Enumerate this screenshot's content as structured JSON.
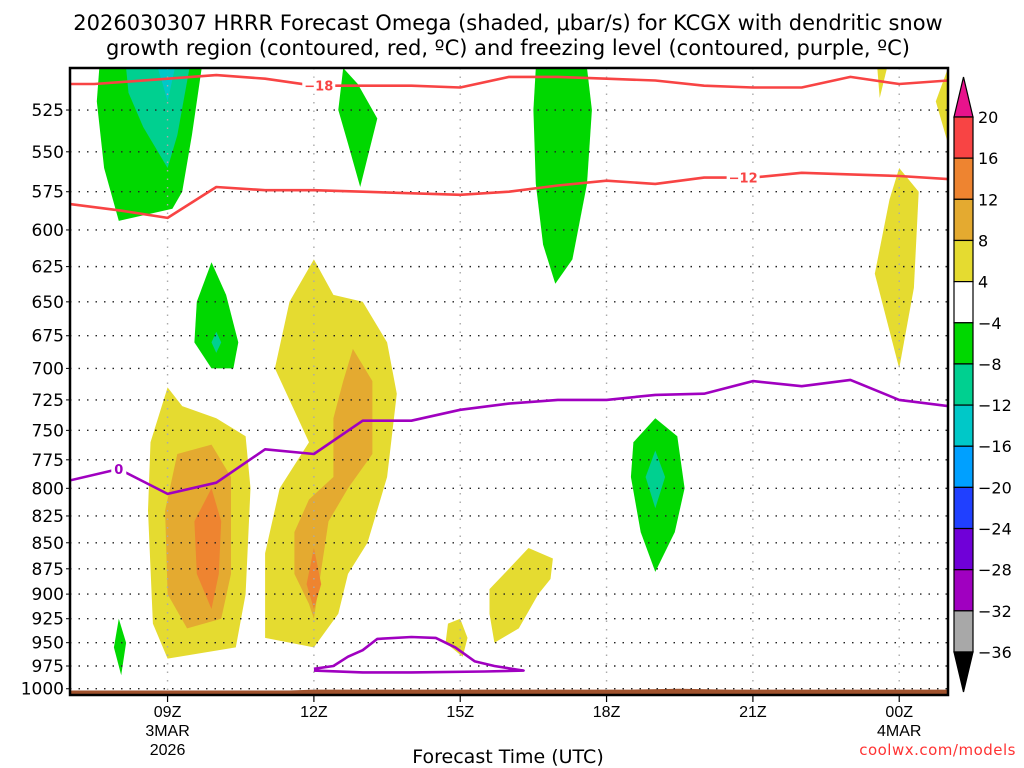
{
  "chart_data": {
    "type": "heatmap",
    "title_lines": [
      "2026030307 HRRR Forecast Omega (shaded, μbar/s) for KCGX with dendritic snow",
      "growth region (contoured, red, ºC) and freezing level (contoured, purple, ºC)"
    ],
    "xlabel": "Forecast Time (UTC)",
    "ylabel": "",
    "credit": "coolwx.com/models",
    "x_range_hours": [
      -2,
      16
    ],
    "x_ticks": [
      {
        "hour": 0,
        "lines": [
          "09Z",
          "3MAR",
          "2026"
        ]
      },
      {
        "hour": 3,
        "lines": [
          "12Z"
        ]
      },
      {
        "hour": 6,
        "lines": [
          "15Z"
        ]
      },
      {
        "hour": 9,
        "lines": [
          "18Z"
        ]
      },
      {
        "hour": 12,
        "lines": [
          "21Z"
        ]
      },
      {
        "hour": 15,
        "lines": [
          "00Z",
          "4MAR"
        ]
      }
    ],
    "y_range_hpa": [
      1007,
      501
    ],
    "y_ticks": [
      525,
      550,
      575,
      600,
      625,
      650,
      675,
      700,
      725,
      750,
      775,
      800,
      825,
      850,
      875,
      900,
      925,
      950,
      975,
      1000
    ],
    "grid": true,
    "colorbar": {
      "levels": [
        "20",
        "16",
        "12",
        "8",
        "4",
        "−4",
        "−8",
        "−12",
        "−16",
        "−20",
        "−24",
        "−28",
        "−32",
        "−36"
      ],
      "top_arrow_color": "#e8138c",
      "bottom_arrow_color": "#000000",
      "bins": [
        {
          "range": "16 to 20",
          "color": "#f84444"
        },
        {
          "range": "12 to 16",
          "color": "#ee8430"
        },
        {
          "range": "8 to 12",
          "color": "#e4aa30"
        },
        {
          "range": "4 to 8",
          "color": "#e5db30"
        },
        {
          "range": "-4 to 4",
          "color": "#ffffff"
        },
        {
          "range": "-8 to -4",
          "color": "#00d800"
        },
        {
          "range": "-12 to -8",
          "color": "#00d090"
        },
        {
          "range": "-16 to -12",
          "color": "#00c8c8"
        },
        {
          "range": "-20 to -16",
          "color": "#00a0ff"
        },
        {
          "range": "-24 to -20",
          "color": "#2040ff"
        },
        {
          "range": "-28 to -24",
          "color": "#7000d8"
        },
        {
          "range": "-32 to -28",
          "color": "#a000c0"
        },
        {
          "range": "-36 to -32",
          "color": "#a8a8a8"
        }
      ]
    },
    "shaded_regions": [
      {
        "name": "ascent-09z-upper",
        "bin_color": "#00d800",
        "points": [
          [
            -1.4,
            501
          ],
          [
            0.7,
            501
          ],
          [
            0.5,
            540
          ],
          [
            0.3,
            575
          ],
          [
            0.1,
            586
          ],
          [
            -1.0,
            594
          ],
          [
            -1.3,
            560
          ],
          [
            -1.45,
            520
          ]
        ]
      },
      {
        "name": "ascent-09z-upper-core",
        "bin_color": "#00d090",
        "points": [
          [
            -0.85,
            501
          ],
          [
            0.45,
            501
          ],
          [
            0.2,
            540
          ],
          [
            0.0,
            560
          ],
          [
            -0.5,
            535
          ],
          [
            -0.8,
            515
          ]
        ]
      },
      {
        "name": "ascent-09z-upper-max",
        "bin_color": "#00c8c8",
        "points": [
          [
            -0.2,
            501
          ],
          [
            0.15,
            501
          ],
          [
            0.0,
            520
          ],
          [
            -0.1,
            510
          ]
        ]
      },
      {
        "name": "ascent-10z",
        "bin_color": "#00d800",
        "points": [
          [
            0.9,
            622
          ],
          [
            1.2,
            645
          ],
          [
            1.45,
            680
          ],
          [
            1.35,
            700
          ],
          [
            0.9,
            700
          ],
          [
            0.55,
            680
          ],
          [
            0.6,
            650
          ]
        ]
      },
      {
        "name": "ascent-10z-core",
        "bin_color": "#00d090",
        "points": [
          [
            1.0,
            672
          ],
          [
            1.1,
            680
          ],
          [
            1.0,
            688
          ],
          [
            0.9,
            680
          ]
        ]
      },
      {
        "name": "ascent-13z",
        "bin_color": "#00d800",
        "points": [
          [
            3.6,
            501
          ],
          [
            3.9,
            510
          ],
          [
            4.3,
            530
          ],
          [
            3.95,
            572
          ],
          [
            3.7,
            545
          ],
          [
            3.5,
            525
          ]
        ]
      },
      {
        "name": "ascent-17z",
        "bin_color": "#00d800",
        "points": [
          [
            7.55,
            501
          ],
          [
            8.6,
            501
          ],
          [
            8.7,
            525
          ],
          [
            8.6,
            570
          ],
          [
            8.3,
            620
          ],
          [
            7.95,
            637
          ],
          [
            7.7,
            610
          ],
          [
            7.55,
            570
          ],
          [
            7.5,
            525
          ]
        ]
      },
      {
        "name": "ascent-19z",
        "bin_color": "#00d800",
        "points": [
          [
            10.0,
            740
          ],
          [
            10.45,
            755
          ],
          [
            10.6,
            800
          ],
          [
            10.4,
            840
          ],
          [
            10.0,
            878
          ],
          [
            9.7,
            840
          ],
          [
            9.5,
            790
          ],
          [
            9.55,
            760
          ]
        ]
      },
      {
        "name": "ascent-19z-core",
        "bin_color": "#00d090",
        "points": [
          [
            10.0,
            767
          ],
          [
            10.2,
            790
          ],
          [
            10.0,
            818
          ],
          [
            9.8,
            790
          ]
        ]
      },
      {
        "name": "ascent-08z-low",
        "bin_color": "#00d800",
        "points": [
          [
            -1.0,
            925
          ],
          [
            -0.85,
            950
          ],
          [
            -0.95,
            985
          ],
          [
            -1.1,
            955
          ]
        ]
      },
      {
        "name": "subsidence-09z-outer",
        "bin_color": "#e5db30",
        "points": [
          [
            0.0,
            715
          ],
          [
            0.3,
            730
          ],
          [
            1.0,
            740
          ],
          [
            1.6,
            755
          ],
          [
            1.7,
            800
          ],
          [
            1.6,
            900
          ],
          [
            1.4,
            955
          ],
          [
            0.0,
            967
          ],
          [
            -0.3,
            930
          ],
          [
            -0.4,
            820
          ],
          [
            -0.35,
            760
          ]
        ]
      },
      {
        "name": "subsidence-09z-mid",
        "bin_color": "#e4aa30",
        "points": [
          [
            0.2,
            770
          ],
          [
            0.9,
            762
          ],
          [
            1.3,
            790
          ],
          [
            1.3,
            880
          ],
          [
            1.1,
            925
          ],
          [
            0.4,
            935
          ],
          [
            0.0,
            900
          ],
          [
            -0.05,
            820
          ]
        ]
      },
      {
        "name": "subsidence-09z-core",
        "bin_color": "#ee8430",
        "points": [
          [
            0.9,
            800
          ],
          [
            1.1,
            830
          ],
          [
            1.05,
            880
          ],
          [
            0.9,
            915
          ],
          [
            0.6,
            880
          ],
          [
            0.55,
            830
          ]
        ]
      },
      {
        "name": "subsidence-12z-outer",
        "bin_color": "#e5db30",
        "points": [
          [
            3.0,
            620
          ],
          [
            3.4,
            645
          ],
          [
            4.0,
            650
          ],
          [
            4.5,
            680
          ],
          [
            4.7,
            720
          ],
          [
            4.5,
            790
          ],
          [
            4.1,
            850
          ],
          [
            3.7,
            880
          ],
          [
            3.5,
            920
          ],
          [
            3.0,
            955
          ],
          [
            2.0,
            945
          ],
          [
            2.0,
            860
          ],
          [
            2.3,
            800
          ],
          [
            2.9,
            760
          ],
          [
            2.2,
            700
          ],
          [
            2.5,
            650
          ]
        ]
      },
      {
        "name": "subsidence-12z-mid",
        "bin_color": "#e4aa30",
        "points": [
          [
            3.8,
            685
          ],
          [
            4.2,
            710
          ],
          [
            4.2,
            770
          ],
          [
            3.7,
            800
          ],
          [
            3.3,
            830
          ],
          [
            3.0,
            925
          ],
          [
            2.9,
            910
          ],
          [
            2.6,
            880
          ],
          [
            2.6,
            840
          ],
          [
            2.9,
            810
          ],
          [
            3.4,
            790
          ],
          [
            3.4,
            740
          ],
          [
            3.6,
            710
          ]
        ]
      },
      {
        "name": "subsidence-12z-core",
        "bin_color": "#ee8430",
        "points": [
          [
            3.0,
            855
          ],
          [
            3.15,
            890
          ],
          [
            3.0,
            915
          ],
          [
            2.85,
            890
          ]
        ]
      },
      {
        "name": "subsidence-14z-low",
        "bin_color": "#e5db30",
        "points": [
          [
            6.0,
            925
          ],
          [
            6.15,
            945
          ],
          [
            6.05,
            965
          ],
          [
            5.7,
            950
          ],
          [
            5.75,
            930
          ]
        ]
      },
      {
        "name": "subsidence-16z-low",
        "bin_color": "#e5db30",
        "points": [
          [
            6.9,
            880
          ],
          [
            7.4,
            855
          ],
          [
            7.9,
            865
          ],
          [
            7.85,
            885
          ],
          [
            7.6,
            900
          ],
          [
            7.2,
            935
          ],
          [
            6.7,
            950
          ],
          [
            6.6,
            920
          ],
          [
            6.6,
            895
          ]
        ]
      },
      {
        "name": "subsidence-23z-upper",
        "bin_color": "#e5db30",
        "points": [
          [
            15.0,
            560
          ],
          [
            15.4,
            575
          ],
          [
            15.3,
            640
          ],
          [
            15.0,
            700
          ],
          [
            14.5,
            630
          ],
          [
            14.8,
            580
          ]
        ]
      },
      {
        "name": "subsidence-23z-top",
        "bin_color": "#e5db30",
        "points": [
          [
            14.55,
            501
          ],
          [
            14.75,
            501
          ],
          [
            14.6,
            518
          ]
        ]
      },
      {
        "name": "subsidence-01z-top",
        "bin_color": "#e5db30",
        "points": [
          [
            16.0,
            501
          ],
          [
            16.0,
            545
          ],
          [
            15.75,
            520
          ]
        ]
      }
    ],
    "contours": [
      {
        "name": "dgz-minus18",
        "label": "−18",
        "color": "#f84444",
        "label_hour": 3.1,
        "points": [
          [
            -2,
            510
          ],
          [
            -1.5,
            510
          ],
          [
            0,
            507
          ],
          [
            1,
            505
          ],
          [
            2,
            507
          ],
          [
            3,
            511
          ],
          [
            4,
            511
          ],
          [
            5,
            511
          ],
          [
            6,
            512
          ],
          [
            7,
            506
          ],
          [
            8,
            506
          ],
          [
            9,
            507
          ],
          [
            10,
            508
          ],
          [
            11,
            511
          ],
          [
            12,
            512
          ],
          [
            13,
            512
          ],
          [
            14,
            506
          ],
          [
            15,
            510
          ],
          [
            16,
            508
          ]
        ]
      },
      {
        "name": "dgz-minus12",
        "label": "−12",
        "color": "#f84444",
        "label_hour": 11.8,
        "points": [
          [
            -2,
            583
          ],
          [
            -1,
            587
          ],
          [
            0,
            592
          ],
          [
            1,
            572
          ],
          [
            2,
            574
          ],
          [
            3,
            574
          ],
          [
            4,
            575
          ],
          [
            6,
            577
          ],
          [
            7,
            575
          ],
          [
            8,
            571
          ],
          [
            9,
            568
          ],
          [
            10,
            570
          ],
          [
            11,
            566
          ],
          [
            12,
            566
          ],
          [
            13,
            563
          ],
          [
            14,
            564
          ],
          [
            15,
            565
          ],
          [
            16,
            567
          ]
        ]
      },
      {
        "name": "freezing-level-0",
        "label": "0",
        "color": "#a000c0",
        "label_hour": -1.0,
        "points": [
          [
            -2,
            793
          ],
          [
            -1,
            783
          ],
          [
            0,
            805
          ],
          [
            1,
            795
          ],
          [
            2,
            766
          ],
          [
            3,
            770
          ],
          [
            4,
            742
          ],
          [
            5,
            742
          ],
          [
            6,
            733
          ],
          [
            7,
            728
          ],
          [
            8,
            725
          ],
          [
            9,
            725
          ],
          [
            10,
            721
          ],
          [
            11,
            720
          ],
          [
            12,
            710
          ],
          [
            13,
            714
          ],
          [
            14,
            709
          ],
          [
            15,
            725
          ],
          [
            16,
            730
          ]
        ]
      },
      {
        "name": "freezing-level-0-low",
        "label": "",
        "color": "#a000c0",
        "label_hour": null,
        "points": [
          [
            3,
            978
          ],
          [
            3.4,
            975
          ],
          [
            3.7,
            965
          ],
          [
            4.0,
            958
          ],
          [
            4.3,
            946
          ],
          [
            5.0,
            944
          ],
          [
            5.5,
            945
          ],
          [
            5.9,
            955
          ],
          [
            6.3,
            970
          ],
          [
            6.7,
            975
          ],
          [
            7.3,
            980
          ],
          [
            6.5,
            981
          ],
          [
            5.0,
            982
          ],
          [
            4.0,
            982
          ],
          [
            3.0,
            980
          ]
        ]
      }
    ],
    "terrain": {
      "color": "#a0522d",
      "surface_hpa": [
        [
          -2,
          1002
        ],
        [
          2.5,
          1002
        ],
        [
          3,
          1001
        ],
        [
          8,
          1001
        ],
        [
          9.5,
          1001
        ],
        [
          10.5,
          1000
        ],
        [
          11.5,
          1001
        ],
        [
          16,
          1001
        ]
      ]
    }
  }
}
